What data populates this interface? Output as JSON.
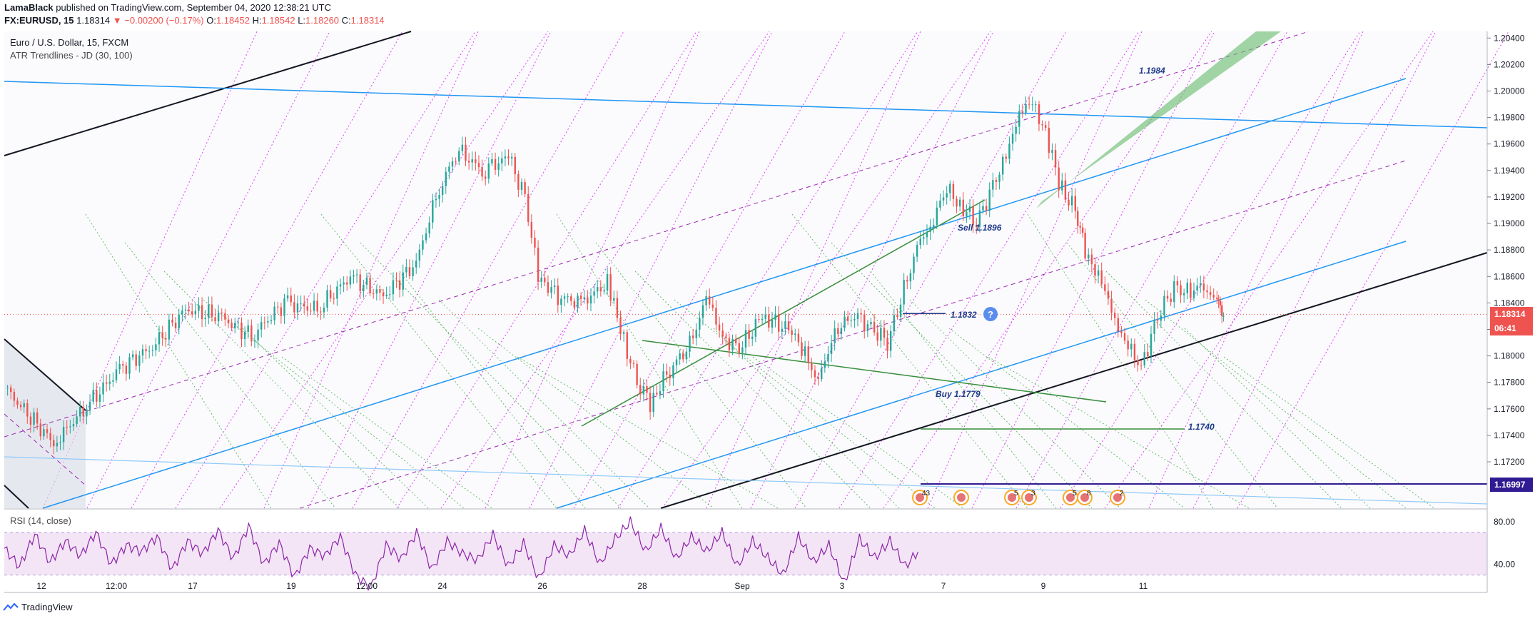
{
  "header": {
    "author": "LamaBlack",
    "published_text": "published on TradingView.com, September 04, 2020 12:38:21 UTC",
    "symbol": "FX:EURUSD, 15",
    "last": "1.18314",
    "change": "▼ −0.00200 (−0.17%)",
    "o_label": "O:",
    "o": "1.18452",
    "h_label": "H:",
    "h": "1.18542",
    "l_label": "L:",
    "l": "1.18260",
    "c_label": "C:",
    "c": "1.18314"
  },
  "legend": {
    "title": "Euro / U.S. Dollar, 15, FXCM",
    "indicator": "ATR Trendlines - JD (30, 100)",
    "rsi": "RSI (14, close)"
  },
  "price_tags": {
    "current": "1.18314",
    "countdown": "06:41",
    "level": "1.16997"
  },
  "event_badges": [
    "43",
    "5",
    "3",
    "5",
    "8",
    "2"
  ],
  "footer": {
    "brand": "TradingView"
  },
  "colors": {
    "up": "#26a69a",
    "down": "#ef5350",
    "candle": "#5b6b63",
    "trend_blue": "#2196f3",
    "trend_purple": "#9c27b0",
    "trend_green": "#388e3c",
    "atr_green": "#66bb6a",
    "atr_magenta": "#e040fb",
    "level_navy": "#311b92",
    "rsi_line": "#8e24aa",
    "rsi_band": "#f3e5f5"
  },
  "chart_data": [
    {
      "type": "candlestick",
      "title": "Euro / U.S. Dollar, 15, FXCM",
      "x_tick_labels": [
        "12",
        "12:00",
        "17",
        "19",
        "12:00",
        "24",
        "26",
        "28",
        "Sep",
        "3",
        "7",
        "9",
        "11"
      ],
      "y_tick_labels": [
        "1.20400",
        "1.20200",
        "1.20000",
        "1.19800",
        "1.19600",
        "1.19400",
        "1.19200",
        "1.19000",
        "1.18800",
        "1.18600",
        "1.18400",
        "1.18200",
        "1.18000",
        "1.17800",
        "1.17600",
        "1.17400",
        "1.17200"
      ],
      "ylim": [
        1.1685,
        1.2045
      ],
      "series": [
        {
          "values": [
            [
              0,
              1.1776
            ],
            [
              1.5,
              1.1734
            ],
            [
              2.5,
              1.1762
            ],
            [
              3.5,
              1.179
            ],
            [
              4.5,
              1.1807
            ],
            [
              5.5,
              1.1835
            ],
            [
              6.5,
              1.183
            ],
            [
              7.5,
              1.1815
            ],
            [
              8.5,
              1.184
            ],
            [
              9.5,
              1.1835
            ],
            [
              10.5,
              1.186
            ],
            [
              11.5,
              1.1845
            ],
            [
              12.5,
              1.187
            ],
            [
              13.2,
              1.1928
            ],
            [
              13.8,
              1.1955
            ],
            [
              14.5,
              1.194
            ],
            [
              15.3,
              1.195
            ],
            [
              15.8,
              1.192
            ],
            [
              16.2,
              1.186
            ],
            [
              16.8,
              1.1845
            ],
            [
              17.5,
              1.184
            ],
            [
              18.3,
              1.1855
            ],
            [
              18.7,
              1.182
            ],
            [
              19.2,
              1.178
            ],
            [
              19.6,
              1.1765
            ],
            [
              20.2,
              1.179
            ],
            [
              20.8,
              1.1808
            ],
            [
              21.3,
              1.1843
            ],
            [
              21.8,
              1.1815
            ],
            [
              22.3,
              1.1805
            ],
            [
              23.0,
              1.183
            ],
            [
              23.8,
              1.182
            ],
            [
              24.3,
              1.1803
            ],
            [
              24.7,
              1.1778
            ],
            [
              25.2,
              1.182
            ],
            [
              25.8,
              1.183
            ],
            [
              26.3,
              1.1822
            ],
            [
              26.8,
              1.181
            ],
            [
              27.3,
              1.185
            ],
            [
              27.7,
              1.188
            ],
            [
              28.1,
              1.19
            ],
            [
              28.6,
              1.1925
            ],
            [
              29.0,
              1.1915
            ],
            [
              29.5,
              1.19
            ],
            [
              30.0,
              1.1928
            ],
            [
              30.4,
              1.195
            ],
            [
              30.8,
              1.1985
            ],
            [
              31.2,
              1.199
            ],
            [
              31.6,
              1.197
            ],
            [
              32.0,
              1.193
            ],
            [
              32.5,
              1.191
            ],
            [
              32.8,
              1.188
            ],
            [
              33.2,
              1.186
            ],
            [
              33.6,
              1.1835
            ],
            [
              34.0,
              1.181
            ],
            [
              34.5,
              1.1792
            ],
            [
              35.0,
              1.183
            ],
            [
              35.5,
              1.1852
            ],
            [
              36.0,
              1.1847
            ],
            [
              36.4,
              1.1855
            ],
            [
              36.8,
              1.184
            ],
            [
              37.0,
              1.1831
            ]
          ]
        }
      ],
      "levels": [
        {
          "label": "1.1984",
          "value": 1.1984
        },
        {
          "label": "Sell 1.1896",
          "value": 1.1896
        },
        {
          "label": "1.1832",
          "value": 1.1832
        },
        {
          "label": "Buy 1.1779",
          "value": 1.1779
        },
        {
          "label": "1.1740",
          "value": 1.174
        },
        {
          "label": "1.16997",
          "value": 1.16997
        },
        {
          "label": "1.18314",
          "value": 1.18314
        }
      ]
    },
    {
      "type": "line",
      "title": "RSI (14, close)",
      "y_tick_labels": [
        "80.00",
        "40.00"
      ],
      "ylim": [
        15,
        90
      ],
      "bands": [
        70,
        30
      ],
      "series": [
        {
          "values": [
            55,
            38,
            68,
            42,
            62,
            48,
            70,
            40,
            58,
            52,
            66,
            35,
            62,
            50,
            72,
            45,
            76,
            40,
            60,
            28,
            55,
            48,
            66,
            30,
            18,
            58,
            45,
            70,
            35,
            62,
            50,
            44,
            68,
            38,
            60,
            26,
            58,
            48,
            72,
            40,
            64,
            80,
            52,
            74,
            45,
            66,
            52,
            70,
            38,
            62,
            46,
            30,
            66,
            42,
            58,
            22,
            64,
            46,
            62,
            38,
            55
          ]
        }
      ]
    }
  ]
}
